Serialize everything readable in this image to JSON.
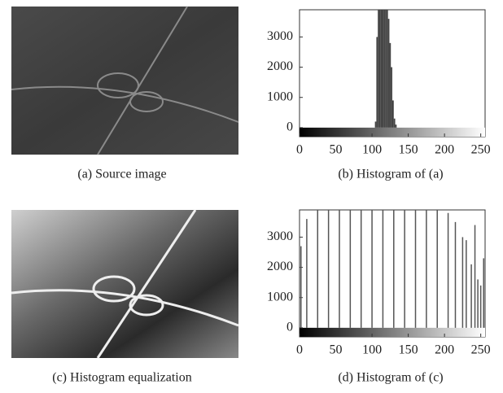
{
  "captions": [
    "(a) Source image",
    "(b) Histogram of (a)",
    "(c) Histogram equalization",
    "(d) Histogram of (c)"
  ],
  "chart_data": [
    {
      "type": "histogram",
      "bins": [
        104,
        106,
        108,
        110,
        112,
        114,
        116,
        118,
        120,
        122,
        124,
        126,
        128,
        130,
        132,
        134
      ],
      "counts": [
        200,
        3000,
        3900,
        3900,
        3900,
        3900,
        3900,
        3900,
        3900,
        3600,
        2800,
        2000,
        900,
        300,
        100
      ],
      "color": "#444444",
      "xlim": [
        0,
        256
      ],
      "ylim": [
        -300,
        3900
      ],
      "xticks": [
        0,
        50,
        100,
        150,
        200,
        250
      ],
      "yticks": [
        0,
        1000,
        2000,
        3000
      ]
    },
    {
      "type": "stem",
      "x": [
        2,
        10,
        25,
        40,
        55,
        70,
        85,
        100,
        115,
        130,
        145,
        160,
        175,
        190,
        205,
        215,
        225,
        230,
        237,
        242,
        246,
        250,
        254
      ],
      "values": [
        2700,
        3600,
        3900,
        3900,
        3900,
        3900,
        3900,
        3900,
        3900,
        3900,
        3900,
        3900,
        3900,
        3900,
        3800,
        3500,
        3000,
        2900,
        2100,
        3400,
        1600,
        1400,
        2300
      ],
      "color": "#555555",
      "xlim": [
        0,
        256
      ],
      "ylim": [
        -300,
        3900
      ],
      "xticks": [
        0,
        50,
        100,
        150,
        200,
        250
      ],
      "yticks": [
        0,
        1000,
        2000,
        3000
      ]
    }
  ]
}
